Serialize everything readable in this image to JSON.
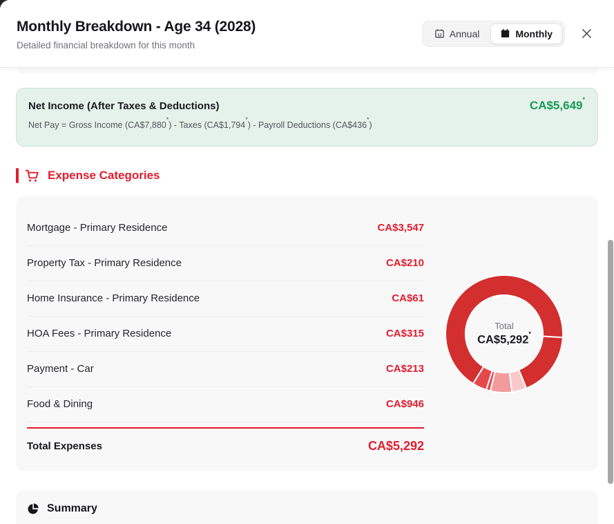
{
  "header": {
    "title": "Monthly Breakdown - Age 34 (2028)",
    "subtitle": "Detailed financial breakdown for this month",
    "toggle": {
      "annual_label": "Annual",
      "monthly_label": "Monthly",
      "selected": "Monthly"
    }
  },
  "net_income": {
    "label": "Net Income (After Taxes & Deductions)",
    "value": "CA$5,649",
    "asterisk": "*",
    "formula": {
      "p1": "Net Pay = Gross Income (CA$7,880",
      "p2": ") - Taxes (CA$1,794",
      "p3": ") - Payroll Deductions (CA$436",
      "p4": ")"
    }
  },
  "expenses": {
    "section_title": "Expense Categories",
    "rows": [
      {
        "label": "Mortgage - Primary Residence",
        "value": "CA$3,547"
      },
      {
        "label": "Property Tax - Primary Residence",
        "value": "CA$210"
      },
      {
        "label": "Home Insurance - Primary Residence",
        "value": "CA$61"
      },
      {
        "label": "HOA Fees - Primary Residence",
        "value": "CA$315"
      },
      {
        "label": "Payment - Car",
        "value": "CA$213"
      },
      {
        "label": "Food & Dining",
        "value": "CA$946"
      }
    ],
    "total_label": "Total Expenses",
    "total_value": "CA$5,292"
  },
  "chart_data": {
    "type": "pie",
    "variant": "donut",
    "title": "Expense Categories breakdown",
    "categories": [
      "Mortgage - Primary Residence",
      "Property Tax - Primary Residence",
      "Home Insurance - Primary Residence",
      "HOA Fees - Primary Residence",
      "Payment - Car",
      "Food & Dining"
    ],
    "values": [
      3547,
      210,
      61,
      315,
      213,
      946
    ],
    "colors": [
      "#d32f2f",
      "#e5484d",
      "#e5484d",
      "#f29b9d",
      "#f8c8ca",
      "#d32f2f"
    ],
    "total": 5292,
    "center_label": "Total",
    "center_value": "CA$5,292",
    "center_asterisk": "*",
    "legend": "none",
    "layout": "segments drawn counterclockwise starting at 3 o'clock, white gaps between segments"
  },
  "summary": {
    "section_title": "Summary"
  },
  "colors": {
    "accent_red": "#e11d2d",
    "accent_green": "#179a55",
    "net_income_bg": "#e4f2ea",
    "card_bg": "#f8f8f9"
  }
}
